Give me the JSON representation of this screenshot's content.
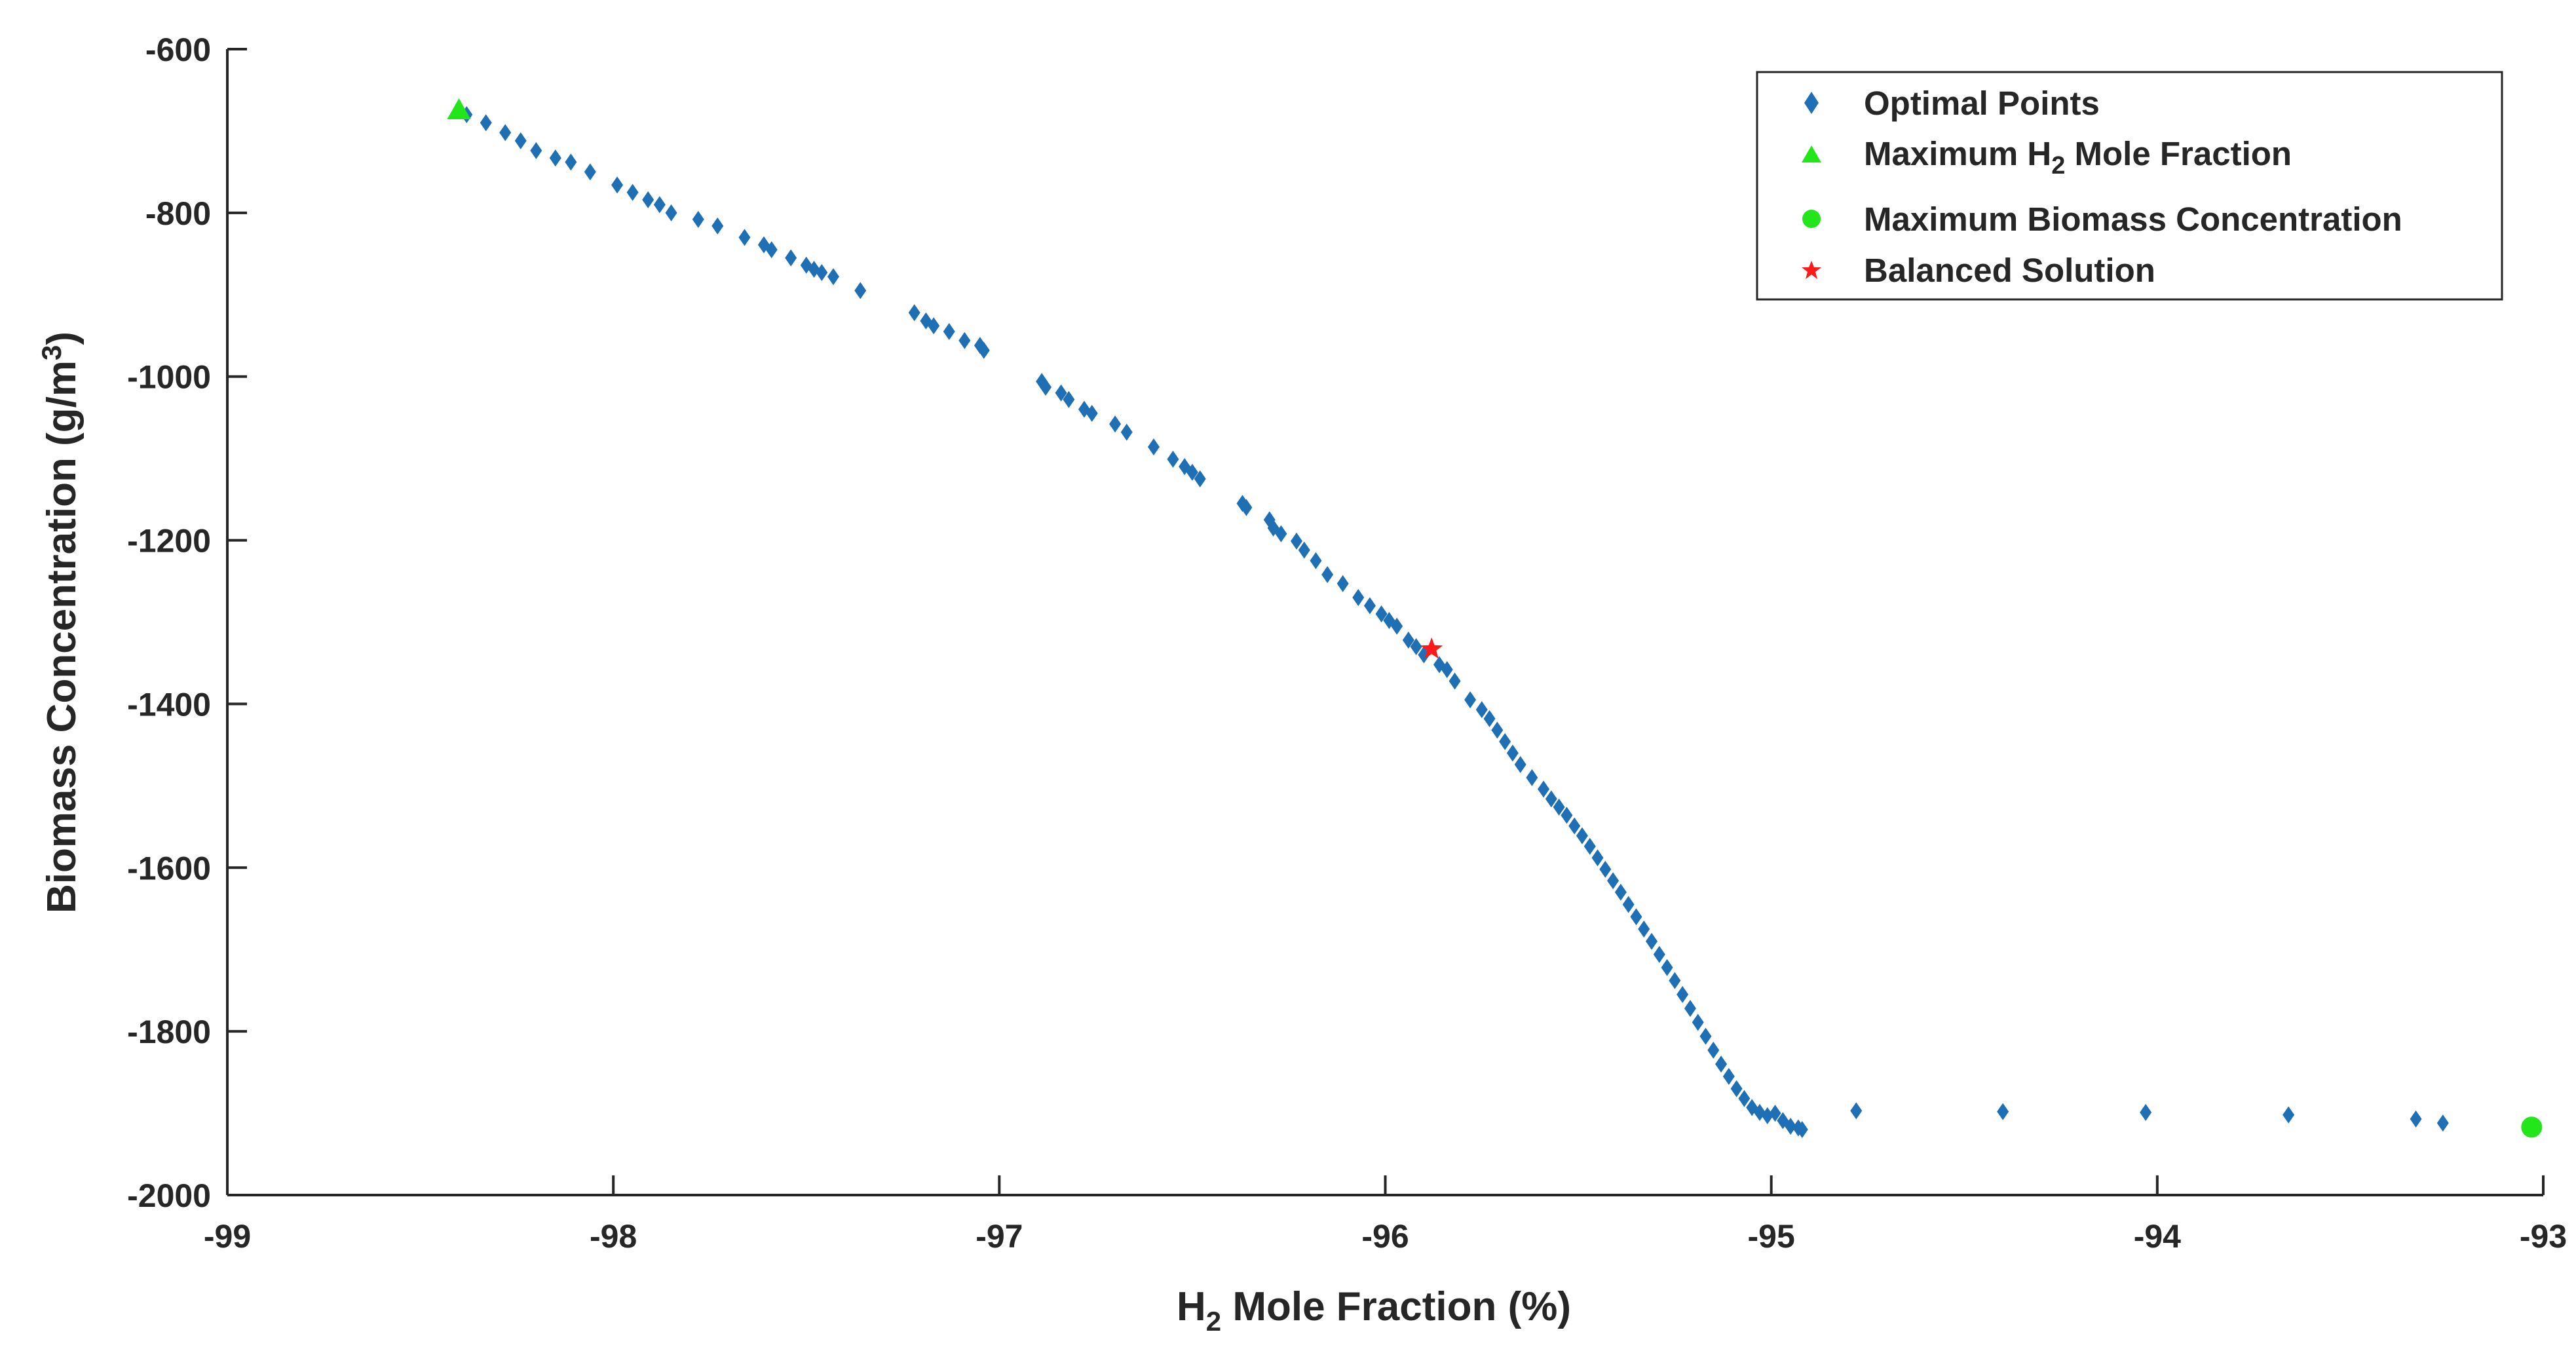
{
  "chart_data": {
    "type": "scatter",
    "title": "",
    "xlabel": {
      "base": "H",
      "sub": "2",
      "rest": " Mole Fraction (%)"
    },
    "ylabel": {
      "base": "Biomass Concentration (g/m",
      "sup": "3",
      "rest": ")"
    },
    "xlim": [
      -99,
      -93
    ],
    "ylim": [
      -2000,
      -600
    ],
    "xticks": [
      -99,
      -98,
      -97,
      -96,
      -95,
      -94,
      -93
    ],
    "yticks": [
      -600,
      -800,
      -1000,
      -1200,
      -1400,
      -1600,
      -1800,
      -2000
    ],
    "xtick_labels": [
      "-99",
      "-98",
      "-97",
      "-96",
      "-95",
      "-94",
      "-93"
    ],
    "ytick_labels": [
      "-600",
      "-800",
      "-1000",
      "-1200",
      "-1400",
      "-1600",
      "-1800",
      "-2000"
    ],
    "grid": false,
    "legend_position": "top-right",
    "colors": {
      "optimal": "#1f6fb5",
      "max_marker": "#22e51a",
      "balanced": "#ff1a1a",
      "axis": "#262626"
    },
    "legend": [
      {
        "key": "optimal",
        "label": "Optimal Points"
      },
      {
        "key": "max_h2",
        "label_base": "Maximum H",
        "label_sub": "2",
        "label_rest": " Mole Fraction"
      },
      {
        "key": "max_biomass",
        "label": "Maximum Biomass Concentration"
      },
      {
        "key": "balanced",
        "label": "Balanced Solution"
      }
    ],
    "series": [
      {
        "name": "Optimal Points",
        "marker": "diamond",
        "x": [
          -98.38,
          -98.33,
          -98.28,
          -98.24,
          -98.2,
          -98.15,
          -98.11,
          -98.06,
          -97.99,
          -97.95,
          -97.91,
          -97.88,
          -97.85,
          -97.78,
          -97.73,
          -97.66,
          -97.61,
          -97.59,
          -97.54,
          -97.5,
          -97.48,
          -97.46,
          -97.43,
          -97.36,
          -97.22,
          -97.19,
          -97.17,
          -97.13,
          -97.09,
          -97.05,
          -97.04,
          -96.89,
          -96.88,
          -96.84,
          -96.82,
          -96.78,
          -96.76,
          -96.7,
          -96.67,
          -96.6,
          -96.55,
          -96.52,
          -96.5,
          -96.48,
          -96.37,
          -96.36,
          -96.3,
          -96.29,
          -96.27,
          -96.23,
          -96.21,
          -96.18,
          -96.15,
          -96.11,
          -96.07,
          -96.04,
          -96.01,
          -95.99,
          -95.97,
          -95.94,
          -95.92,
          -95.9,
          -95.86,
          -95.84,
          -95.82,
          -95.78,
          -95.75,
          -95.73,
          -95.71,
          -95.69,
          -95.67,
          -95.65,
          -95.62,
          -95.59,
          -95.57,
          -95.55,
          -95.53,
          -95.51,
          -95.49,
          -95.47,
          -95.45,
          -95.43,
          -95.41,
          -95.39,
          -95.37,
          -95.35,
          -95.33,
          -95.31,
          -95.29,
          -95.27,
          -95.25,
          -95.23,
          -95.21,
          -95.19,
          -95.17,
          -95.15,
          -95.13,
          -95.11,
          -95.09,
          -95.07,
          -95.05,
          -95.03,
          -95.01,
          -94.99,
          -94.97,
          -94.95,
          -94.93,
          -94.92,
          -94.78,
          -94.4,
          -94.03,
          -93.66,
          -93.33,
          -93.26
        ],
        "y": [
          -680,
          -690,
          -702,
          -712,
          -724,
          -733,
          -738,
          -750,
          -766,
          -775,
          -784,
          -790,
          -800,
          -808,
          -816,
          -830,
          -839,
          -845,
          -855,
          -864,
          -869,
          -873,
          -878,
          -895,
          -922,
          -932,
          -938,
          -945,
          -956,
          -962,
          -968,
          -1006,
          -1013,
          -1020,
          -1028,
          -1040,
          -1045,
          -1058,
          -1068,
          -1086,
          -1101,
          -1110,
          -1117,
          -1125,
          -1155,
          -1160,
          -1175,
          -1185,
          -1192,
          -1201,
          -1212,
          -1225,
          -1242,
          -1253,
          -1270,
          -1280,
          -1290,
          -1298,
          -1305,
          -1322,
          -1330,
          -1340,
          -1352,
          -1358,
          -1372,
          -1395,
          -1407,
          -1418,
          -1432,
          -1446,
          -1460,
          -1474,
          -1490,
          -1504,
          -1516,
          -1526,
          -1536,
          -1549,
          -1561,
          -1574,
          -1588,
          -1602,
          -1616,
          -1630,
          -1645,
          -1660,
          -1675,
          -1690,
          -1706,
          -1722,
          -1738,
          -1755,
          -1772,
          -1789,
          -1806,
          -1823,
          -1840,
          -1855,
          -1870,
          -1882,
          -1893,
          -1899,
          -1903,
          -1900,
          -1909,
          -1916,
          -1918,
          -1920,
          -1897,
          -1898,
          -1899,
          -1902,
          -1907,
          -1912
        ]
      },
      {
        "name": "Maximum H2 Mole Fraction",
        "marker": "triangle",
        "x": [
          -98.4
        ],
        "y": [
          -676
        ]
      },
      {
        "name": "Maximum Biomass Concentration",
        "marker": "circle",
        "x": [
          -93.03
        ],
        "y": [
          -1917
        ]
      },
      {
        "name": "Balanced Solution",
        "marker": "star",
        "x": [
          -95.88
        ],
        "y": [
          -1333
        ]
      }
    ]
  }
}
